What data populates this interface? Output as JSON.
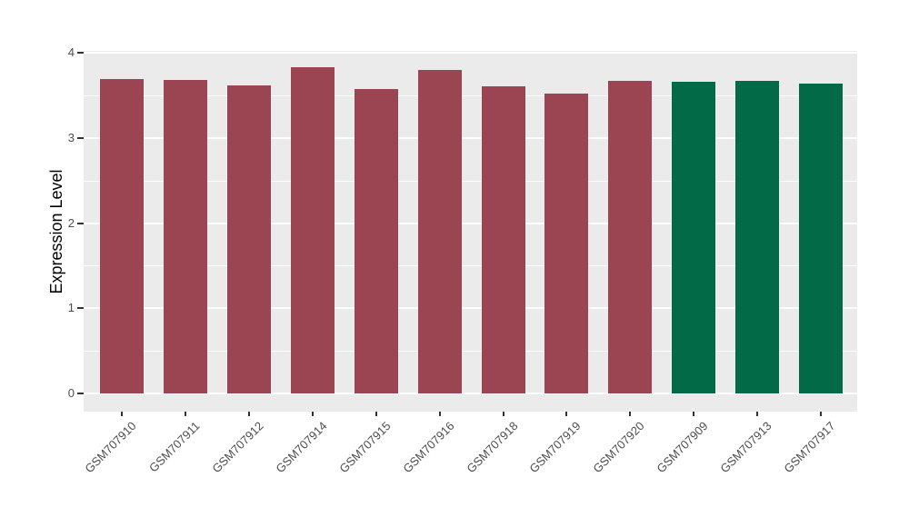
{
  "style": {
    "figure_bg": "#FFFFFF",
    "panel_bg": "#EBEBEB",
    "grid_color": "#FFFFFF",
    "tick_mark_color": "#333333",
    "tick_label_color": "#4D4D4D",
    "axis_title_color": "#000000"
  },
  "chart_data": {
    "type": "bar",
    "title": "",
    "xlabel": "",
    "ylabel": "Expression Level",
    "ylim": [
      0,
      4
    ],
    "yticks": [
      0,
      1,
      2,
      3,
      4
    ],
    "yticks_minor": [
      0.5,
      1.5,
      2.5,
      3.5
    ],
    "grid": "major and minor white gridlines on gray panel",
    "legend_position": "none",
    "categories": [
      "GSM707910",
      "GSM707911",
      "GSM707912",
      "GSM707914",
      "GSM707915",
      "GSM707916",
      "GSM707918",
      "GSM707919",
      "GSM707920",
      "GSM707909",
      "GSM707913",
      "GSM707917"
    ],
    "values": [
      3.69,
      3.68,
      3.62,
      3.83,
      3.57,
      3.8,
      3.61,
      3.52,
      3.67,
      3.66,
      3.67,
      3.64
    ],
    "bar_groups": [
      "red",
      "red",
      "red",
      "red",
      "red",
      "red",
      "red",
      "red",
      "red",
      "green",
      "green",
      "green"
    ],
    "group_colors": {
      "red": "#9B4552",
      "green": "#026A47"
    }
  }
}
